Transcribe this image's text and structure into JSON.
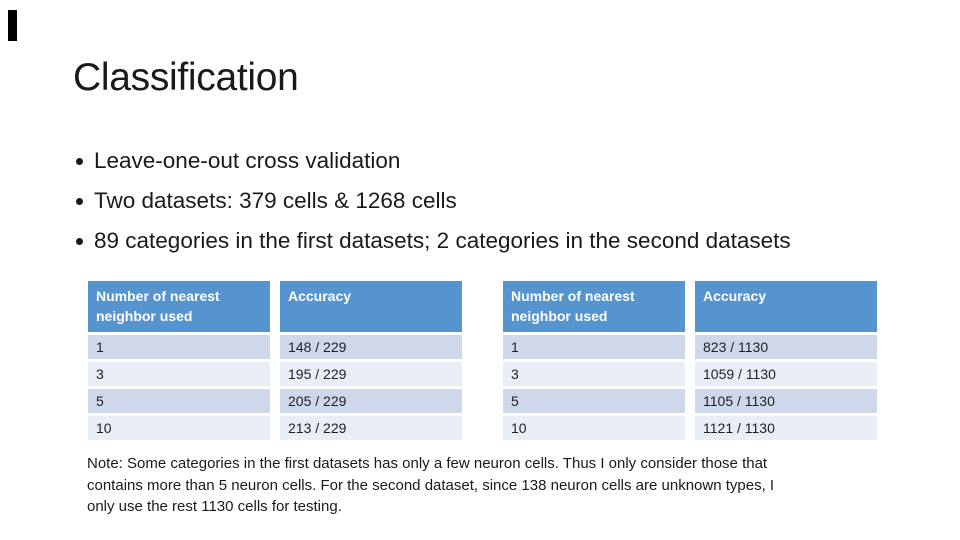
{
  "title": "Classification",
  "bullets": [
    "Leave-one-out cross validation",
    "Two datasets: 379 cells & 1268 cells",
    "89 categories in the first datasets; 2 categories in the second datasets"
  ],
  "tables": [
    {
      "headers": [
        "Number of nearest neighbor used",
        "Accuracy"
      ],
      "rows": [
        [
          "1",
          "148 / 229"
        ],
        [
          "3",
          "195 / 229"
        ],
        [
          "5",
          "205 / 229"
        ],
        [
          "10",
          "213 / 229"
        ]
      ]
    },
    {
      "headers": [
        "Number of nearest neighbor used",
        "Accuracy"
      ],
      "rows": [
        [
          "1",
          "823 / 1130"
        ],
        [
          "3",
          "1059 / 1130"
        ],
        [
          "5",
          "1105 / 1130"
        ],
        [
          "10",
          "1121 / 1130"
        ]
      ]
    }
  ],
  "note_lines": [
    "Note: Some categories in the first datasets has only a few neuron cells. Thus I only consider those that",
    "contains more than 5 neuron cells. For the second dataset, since 138 neuron cells are unknown types, I",
    "only use the rest 1130 cells for testing."
  ],
  "colors": {
    "background": "#FFFFFF",
    "accent_bar": "#000000",
    "text": "#1A1A1A",
    "header_bg": "#5594CE",
    "header_text": "#FFFFFF",
    "band_dark": "#CFD8EA",
    "band_light": "#E8EDF6",
    "body_text": "#1F1F1F"
  }
}
